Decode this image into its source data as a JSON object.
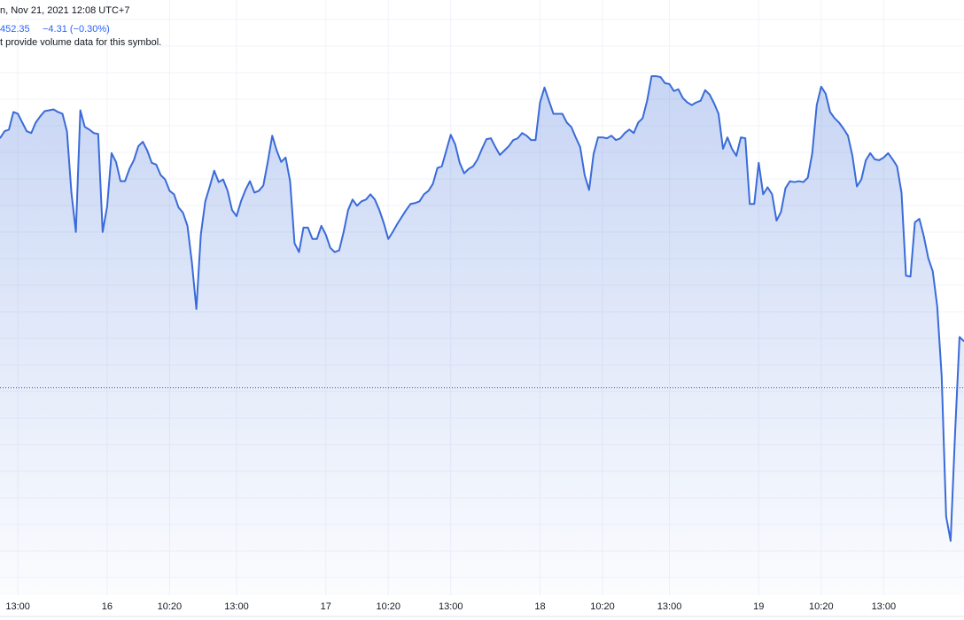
{
  "chart_data": {
    "type": "area",
    "title": "n, Nov 21, 2021 12:08 UTC+7",
    "price_label": "452.35",
    "change_label": "−4.31 (−0.30%)",
    "note": "t provide volume data for this symbol.",
    "color": "#3a6bd8",
    "baseline": 1445.7,
    "ylim": [
      1422,
      1490
    ],
    "xticks": [
      {
        "value": 4,
        "label": "13:00"
      },
      {
        "value": 24,
        "label": "16"
      },
      {
        "value": 38,
        "label": "10:20"
      },
      {
        "value": 53,
        "label": "13:00"
      },
      {
        "value": 73,
        "label": "17"
      },
      {
        "value": 87,
        "label": "10:20"
      },
      {
        "value": 101,
        "label": "13:00"
      },
      {
        "value": 121,
        "label": "18"
      },
      {
        "value": 135,
        "label": "10:20"
      },
      {
        "value": 150,
        "label": "13:00"
      },
      {
        "value": 170,
        "label": "19"
      },
      {
        "value": 184,
        "label": "10:20"
      },
      {
        "value": 198,
        "label": "13:00"
      }
    ],
    "values": [
      1474.2,
      1475,
      1475.2,
      1477.2,
      1477,
      1476,
      1475,
      1474.8,
      1476,
      1476.7,
      1477.3,
      1477.4,
      1477.5,
      1477.2,
      1477,
      1475,
      1468,
      1463.5,
      1477.4,
      1475.5,
      1475.2,
      1474.8,
      1474.7,
      1463.5,
      1466.4,
      1472.5,
      1471.5,
      1469.3,
      1469.3,
      1470.7,
      1471.7,
      1473.3,
      1473.8,
      1472.8,
      1471.4,
      1471.2,
      1470,
      1469.5,
      1468.2,
      1467.8,
      1466.3,
      1465.7,
      1464.2,
      1460,
      1454.7,
      1463.2,
      1467,
      1468.7,
      1470.5,
      1469.2,
      1469.5,
      1468.2,
      1466,
      1465.3,
      1467,
      1468.3,
      1469.3,
      1468,
      1468.2,
      1468.8,
      1471.5,
      1474.5,
      1472.8,
      1471.5,
      1472,
      1469.3,
      1462.2,
      1461.2,
      1464,
      1464,
      1462.7,
      1462.7,
      1464.2,
      1463.2,
      1461.7,
      1461.2,
      1461.4,
      1463.5,
      1466,
      1467.2,
      1466.5,
      1467,
      1467.2,
      1467.8,
      1467.2,
      1466,
      1464.5,
      1462.7,
      1463.5,
      1464.4,
      1465.2,
      1466,
      1466.7,
      1466.8,
      1467,
      1467.8,
      1468.2,
      1469,
      1470.8,
      1471,
      1472.8,
      1474.6,
      1473.5,
      1471.4,
      1470.2,
      1470.7,
      1471,
      1471.8,
      1473,
      1474.1,
      1474.2,
      1473.2,
      1472.3,
      1472.8,
      1473.3,
      1474,
      1474.2,
      1474.8,
      1474.5,
      1474,
      1474,
      1478.3,
      1480,
      1478.5,
      1477,
      1477,
      1477,
      1476,
      1475.5,
      1474.3,
      1473.2,
      1470,
      1468.3,
      1472.4,
      1474.3,
      1474.3,
      1474.2,
      1474.5,
      1474,
      1474.2,
      1474.8,
      1475.2,
      1474.8,
      1476,
      1476.5,
      1478.5,
      1481.3,
      1481.3,
      1481.2,
      1480.5,
      1480.4,
      1479.6,
      1479.8,
      1478.8,
      1478.3,
      1478,
      1478.3,
      1478.5,
      1479.7,
      1479.2,
      1478.2,
      1477,
      1473,
      1474.3,
      1473,
      1472.2,
      1474.3,
      1474.2,
      1466.7,
      1466.7,
      1471.4,
      1467.8,
      1468.6,
      1467.8,
      1464.8,
      1465.8,
      1468.5,
      1469.3,
      1469.2,
      1469.3,
      1469.2,
      1469.7,
      1472.5,
      1478,
      1480.1,
      1479.3,
      1477.2,
      1476.5,
      1476,
      1475.3,
      1474.5,
      1472.2,
      1468.7,
      1469.5,
      1471.7,
      1472.5,
      1471.8,
      1471.7,
      1472,
      1472.5,
      1471.8,
      1471,
      1468,
      1458.5,
      1458.4,
      1464.6,
      1465,
      1463,
      1460.5,
      1459,
      1455,
      1447,
      1431,
      1428.2,
      1440.5,
      1451.5,
      1451
    ]
  }
}
